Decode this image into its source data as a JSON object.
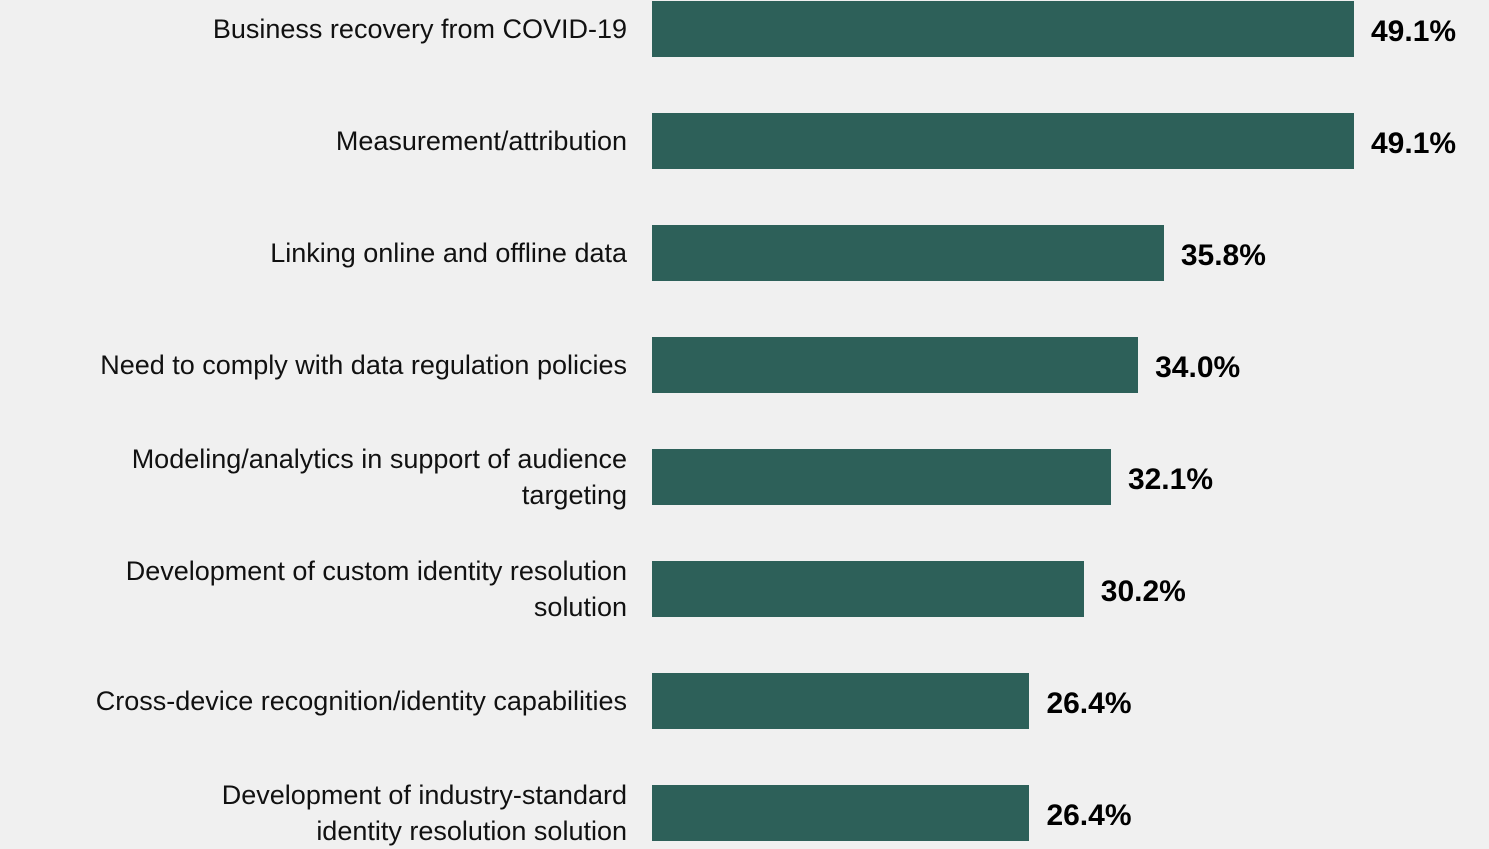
{
  "chart_data": {
    "type": "bar",
    "orientation": "horizontal",
    "categories": [
      "Business recovery from COVID-19",
      "Measurement/attribution",
      "Linking online and offline data",
      "Need to comply with data regulation policies",
      "Modeling/analytics in support of audience\ntargeting",
      "Development of custom identity resolution\nsolution",
      "Cross-device recognition/identity capabilities",
      "Development of industry-standard\nidentity resolution solution"
    ],
    "values": [
      49.1,
      49.1,
      35.8,
      34.0,
      32.1,
      30.2,
      26.4,
      26.4
    ],
    "value_labels": [
      "49.1%",
      "49.1%",
      "35.8%",
      "34.0%",
      "32.1%",
      "30.2%",
      "26.4%",
      "26.4%"
    ],
    "color": "#2d6059"
  }
}
